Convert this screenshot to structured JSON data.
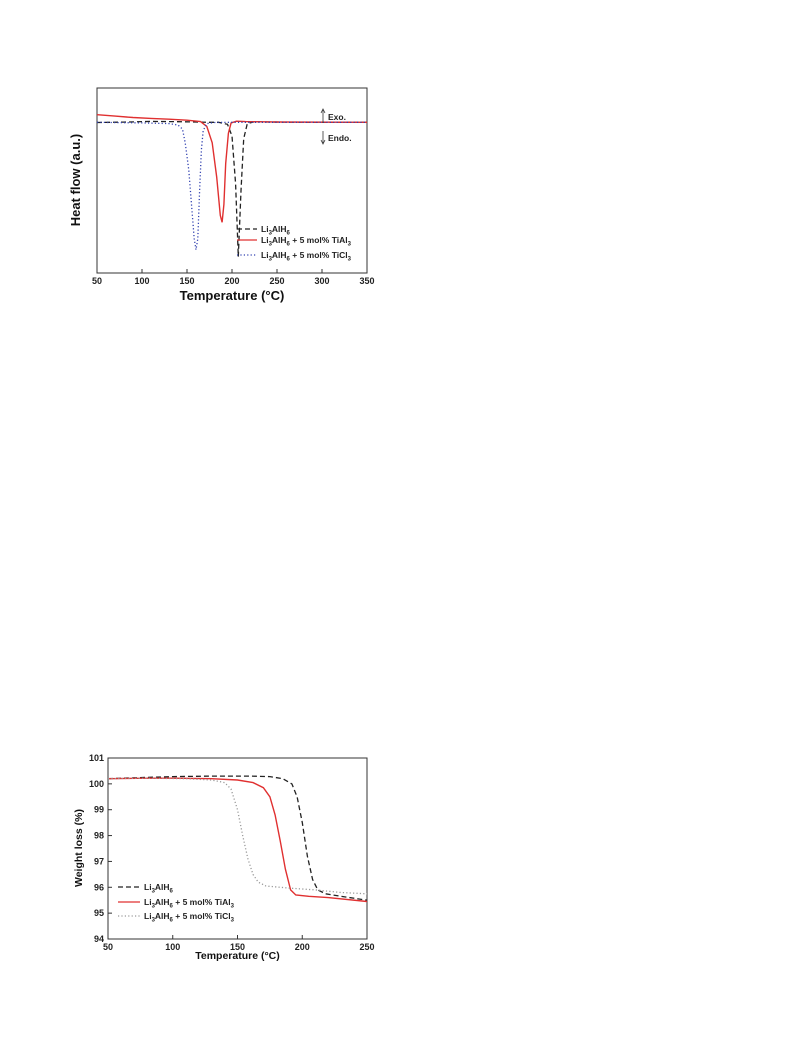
{
  "chart_data": [
    {
      "type": "line",
      "xlabel": "Temperature (°C)",
      "ylabel": "Heat flow (a.u.)",
      "xlim": [
        50,
        350
      ],
      "x_ticks": [
        50,
        100,
        150,
        200,
        250,
        300,
        350
      ],
      "y_ticks": [],
      "annotations": [
        "Exo.",
        "Endo."
      ],
      "legend_position": "bottom-right",
      "grid": false,
      "series": [
        {
          "name": "Li3AlH6",
          "color": "#222222",
          "style": "dashed",
          "points": [
            [
              50,
              -0.02
            ],
            [
              80,
              0.01
            ],
            [
              110,
              0.06
            ],
            [
              140,
              0.04
            ],
            [
              160,
              0.02
            ],
            [
              175,
              0.0
            ],
            [
              185,
              0.0
            ],
            [
              195,
              -0.15
            ],
            [
              200,
              -1.0
            ],
            [
              204,
              -4.5
            ],
            [
              207,
              -9.8
            ],
            [
              210,
              -5.0
            ],
            [
              213,
              -1.2
            ],
            [
              217,
              -0.1
            ],
            [
              225,
              0.04
            ],
            [
              240,
              0.02
            ],
            [
              280,
              0.0
            ],
            [
              350,
              0.0
            ]
          ]
        },
        {
          "name": "Li3AlH6 + 5 mol% TiAl3",
          "color": "#e03030",
          "style": "solid",
          "points": [
            [
              50,
              0.55
            ],
            [
              70,
              0.45
            ],
            [
              90,
              0.35
            ],
            [
              110,
              0.28
            ],
            [
              130,
              0.22
            ],
            [
              150,
              0.15
            ],
            [
              165,
              0.05
            ],
            [
              172,
              -0.3
            ],
            [
              178,
              -1.5
            ],
            [
              183,
              -4.0
            ],
            [
              187,
              -6.8
            ],
            [
              189,
              -7.3
            ],
            [
              191,
              -6.0
            ],
            [
              193,
              -3.0
            ],
            [
              196,
              -0.8
            ],
            [
              199,
              -0.05
            ],
            [
              205,
              0.08
            ],
            [
              215,
              0.05
            ],
            [
              250,
              0.02
            ],
            [
              350,
              0.0
            ]
          ]
        },
        {
          "name": "Li3AlH6 + 5 mol% TiCl3",
          "color": "#3040b0",
          "style": "dotted",
          "points": [
            [
              50,
              0.0
            ],
            [
              100,
              -0.05
            ],
            [
              130,
              -0.1
            ],
            [
              140,
              -0.2
            ],
            [
              145,
              -0.5
            ],
            [
              148,
              -1.5
            ],
            [
              152,
              -3.5
            ],
            [
              155,
              -6.0
            ],
            [
              158,
              -8.5
            ],
            [
              160,
              -9.3
            ],
            [
              162,
              -8.5
            ],
            [
              164,
              -5.0
            ],
            [
              166,
              -2.0
            ],
            [
              168,
              -0.6
            ],
            [
              172,
              -0.1
            ],
            [
              180,
              -0.02
            ],
            [
              200,
              0.0
            ],
            [
              350,
              0.0
            ]
          ]
        }
      ],
      "legend_labels": [
        {
          "parts": [
            "Li",
            "3",
            "AlH",
            "6",
            ""
          ]
        },
        {
          "parts": [
            "Li",
            "3",
            "AlH",
            "6",
            " + 5 mol% TiAl",
            "3",
            ""
          ]
        },
        {
          "parts": [
            "Li",
            "3",
            "AlH",
            "6",
            " + 5 mol% TiCl",
            "3",
            ""
          ]
        }
      ]
    },
    {
      "type": "line",
      "xlabel": "Temperature (°C)",
      "ylabel": "Weight loss (%)",
      "xlim": [
        50,
        250
      ],
      "ylim": [
        94,
        101
      ],
      "x_ticks": [
        50,
        100,
        150,
        200,
        250
      ],
      "y_ticks": [
        94,
        95,
        96,
        97,
        98,
        99,
        100,
        101
      ],
      "legend_position": "bottom-left",
      "grid": false,
      "series": [
        {
          "name": "Li3AlH6",
          "color": "#222222",
          "style": "dashed",
          "points": [
            [
              50,
              100.2
            ],
            [
              80,
              100.25
            ],
            [
              100,
              100.28
            ],
            [
              130,
              100.3
            ],
            [
              160,
              100.3
            ],
            [
              175,
              100.28
            ],
            [
              185,
              100.2
            ],
            [
              192,
              100.0
            ],
            [
              196,
              99.5
            ],
            [
              200,
              98.5
            ],
            [
              204,
              97.2
            ],
            [
              208,
              96.3
            ],
            [
              212,
              95.9
            ],
            [
              218,
              95.75
            ],
            [
              230,
              95.65
            ],
            [
              250,
              95.5
            ]
          ]
        },
        {
          "name": "Li3AlH6 + 5 mol% TiAl3",
          "color": "#e03030",
          "style": "solid",
          "points": [
            [
              50,
              100.2
            ],
            [
              80,
              100.22
            ],
            [
              100,
              100.22
            ],
            [
              130,
              100.2
            ],
            [
              150,
              100.15
            ],
            [
              162,
              100.05
            ],
            [
              170,
              99.85
            ],
            [
              175,
              99.5
            ],
            [
              179,
              98.8
            ],
            [
              183,
              97.8
            ],
            [
              187,
              96.7
            ],
            [
              191,
              95.9
            ],
            [
              195,
              95.7
            ],
            [
              205,
              95.65
            ],
            [
              220,
              95.6
            ],
            [
              250,
              95.45
            ]
          ]
        },
        {
          "name": "Li3AlH6 + 5 mol% TiCl3",
          "color": "#999999",
          "style": "dotted",
          "points": [
            [
              50,
              100.2
            ],
            [
              80,
              100.22
            ],
            [
              110,
              100.2
            ],
            [
              130,
              100.15
            ],
            [
              140,
              100.05
            ],
            [
              145,
              99.8
            ],
            [
              150,
              99.0
            ],
            [
              154,
              98.0
            ],
            [
              158,
              97.1
            ],
            [
              162,
              96.5
            ],
            [
              166,
              96.2
            ],
            [
              172,
              96.05
            ],
            [
              190,
              95.97
            ],
            [
              210,
              95.9
            ],
            [
              230,
              95.8
            ],
            [
              250,
              95.75
            ]
          ]
        }
      ],
      "legend_labels": [
        {
          "parts": [
            "Li",
            "3",
            "AlH",
            "6",
            ""
          ]
        },
        {
          "parts": [
            "Li",
            "3",
            "AlH",
            "6",
            " + 5 mol% TiAl",
            "3",
            ""
          ]
        },
        {
          "parts": [
            "Li",
            "3",
            "AlH",
            "6",
            " + 5 mol% TiCl",
            "3",
            ""
          ]
        }
      ]
    }
  ]
}
